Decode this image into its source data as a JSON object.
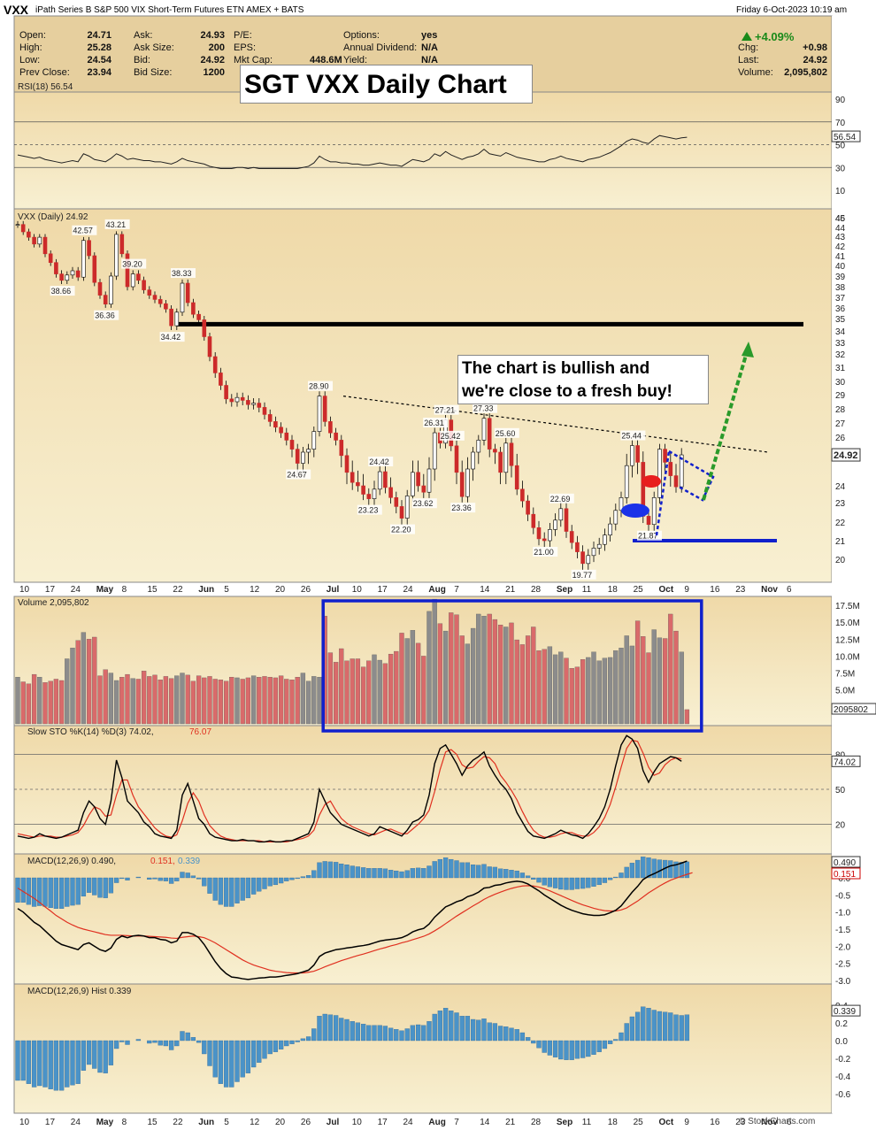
{
  "header": {
    "symbol": "VXX",
    "description": "iPath Series B S&P 500 VIX Short-Term Futures ETN AMEX + BATS",
    "timestamp": "Friday  6-Oct-2023 10:19 am",
    "pct_change": "+4.09%",
    "quote": [
      {
        "label": "Open:",
        "value": "24.71"
      },
      {
        "label": "High:",
        "value": "25.28"
      },
      {
        "label": "Low:",
        "value": "24.54"
      },
      {
        "label": "Prev Close:",
        "value": "23.94"
      },
      {
        "label": "Ask:",
        "value": "24.93"
      },
      {
        "label": "Ask Size:",
        "value": "200"
      },
      {
        "label": "Bid:",
        "value": "24.92"
      },
      {
        "label": "Bid Size:",
        "value": "1200"
      },
      {
        "label": "P/E:",
        "value": ""
      },
      {
        "label": "EPS:",
        "value": ""
      },
      {
        "label": "Mkt Cap:",
        "value": "448.6M"
      },
      {
        "label": "Options:",
        "value": "yes"
      },
      {
        "label": "Annual Dividend:",
        "value": "N/A"
      },
      {
        "label": "Yield:",
        "value": "N/A"
      },
      {
        "label": "Chg:",
        "value": "+0.98"
      },
      {
        "label": "Last:",
        "value": "24.92"
      },
      {
        "label": "Volume:",
        "value": "2,095,802"
      }
    ]
  },
  "annotations": {
    "main_title": "SGT VXX Daily Chart",
    "bull_note_line1": "The chart is bullish and",
    "bull_note_line2": "we're close to a fresh buy!"
  },
  "footer": {
    "source": "© StockCharts.com"
  },
  "colors": {
    "panel_bg": "#f6ecc8",
    "up": "#ffffff",
    "down": "#cc2a2a",
    "vol_up": "#8c8c8c",
    "vol_down": "#d96a6a",
    "macd_hist": "#4a93c8",
    "signal": "#e03020",
    "box": "#1020cc",
    "arrow": "#2a9a2a"
  },
  "chart_data": {
    "type": "candlestick",
    "x_labels": [
      "10",
      "17",
      "24",
      "May",
      "8",
      "15",
      "22",
      "Jun",
      "5",
      "12",
      "20",
      "26",
      "Jul",
      "10",
      "17",
      "24",
      "Aug",
      "7",
      "14",
      "21",
      "28",
      "Sep",
      "11",
      "18",
      "25",
      "Oct",
      "9",
      "16",
      "23",
      "Nov",
      "6"
    ],
    "price": {
      "legend": "VXX (Daily) 24.92",
      "y_ticks": [
        20,
        21,
        22,
        23,
        24,
        25,
        26,
        27,
        28,
        29,
        30,
        31,
        32,
        33,
        34,
        35,
        36,
        37,
        38,
        39,
        40,
        41,
        42,
        43,
        44,
        45,
        46
      ],
      "last": "24.92",
      "closes": [
        44.3,
        43.5,
        42.9,
        42.2,
        42.9,
        41.2,
        40.3,
        39.2,
        38.6,
        39.1,
        39.5,
        38.9,
        42.57,
        41.0,
        38.4,
        37.2,
        36.36,
        39.0,
        43.21,
        41.2,
        38.0,
        39.2,
        38.6,
        37.7,
        37.2,
        36.8,
        36.4,
        35.9,
        34.42,
        35.6,
        38.33,
        36.5,
        35.4,
        34.9,
        33.5,
        31.8,
        30.6,
        29.7,
        28.7,
        28.5,
        28.8,
        28.6,
        28.3,
        28.4,
        28.1,
        27.6,
        27.1,
        26.7,
        26.3,
        25.8,
        25.2,
        24.67,
        25.0,
        25.2,
        26.4,
        28.9,
        27.1,
        26.3,
        25.8,
        24.9,
        24.4,
        24.1,
        24.0,
        23.5,
        23.23,
        23.8,
        24.42,
        23.9,
        23.3,
        22.8,
        22.2,
        23.4,
        24.4,
        24.0,
        23.62,
        24.5,
        26.31,
        25.6,
        27.21,
        25.42,
        24.4,
        23.36,
        24.5,
        25.0,
        25.8,
        27.33,
        25.2,
        25.0,
        24.4,
        25.6,
        24.6,
        23.8,
        23.1,
        22.4,
        21.7,
        21.1,
        21.0,
        21.6,
        22.1,
        22.69,
        21.5,
        20.9,
        20.4,
        19.77,
        20.2,
        20.6,
        20.8,
        21.3,
        21.9,
        22.6,
        23.3,
        24.6,
        25.44,
        24.7,
        22.3,
        21.87,
        23.3,
        25.2,
        24.7,
        24.3,
        23.94,
        24.92
      ],
      "price_labels": [
        {
          "value": "42.57"
        },
        {
          "value": "43.21"
        },
        {
          "value": "38.66"
        },
        {
          "value": "36.36"
        },
        {
          "value": "39.20"
        },
        {
          "value": "38.33"
        },
        {
          "value": "34.42"
        },
        {
          "value": "28.90"
        },
        {
          "value": "24.67"
        },
        {
          "value": "24.42"
        },
        {
          "value": "23.23"
        },
        {
          "value": "22.20"
        },
        {
          "value": "26.31"
        },
        {
          "value": "27.21"
        },
        {
          "value": "25.42"
        },
        {
          "value": "23.62"
        },
        {
          "value": "23.36"
        },
        {
          "value": "27.33"
        },
        {
          "value": "25.60"
        },
        {
          "value": "22.69"
        },
        {
          "value": "21.00"
        },
        {
          "value": "19.77"
        },
        {
          "value": "25.44"
        },
        {
          "value": "21.87"
        }
      ],
      "support_level": 34.4,
      "lower_support_level": 21.0
    },
    "rsi": {
      "legend": "RSI(18) 56.54",
      "y_ticks": [
        10,
        30,
        50,
        70,
        90
      ],
      "value_label": "56.54",
      "values": [
        41,
        40,
        39,
        38,
        39,
        37,
        36,
        35,
        34,
        35,
        36,
        35,
        42,
        40,
        37,
        36,
        35,
        38,
        42,
        40,
        37,
        38,
        37,
        36,
        36,
        35,
        35,
        34,
        33,
        35,
        38,
        36,
        35,
        34,
        33,
        31,
        30,
        29,
        29,
        29,
        30,
        30,
        29,
        30,
        29,
        29,
        29,
        29,
        29,
        29,
        29,
        29,
        30,
        31,
        34,
        40,
        37,
        35,
        35,
        34,
        34,
        33,
        33,
        32,
        32,
        33,
        34,
        33,
        32,
        32,
        31,
        34,
        37,
        36,
        35,
        37,
        42,
        40,
        44,
        41,
        39,
        37,
        39,
        40,
        42,
        46,
        42,
        41,
        40,
        43,
        41,
        39,
        38,
        37,
        36,
        35,
        35,
        37,
        38,
        40,
        38,
        37,
        36,
        35,
        37,
        38,
        39,
        41,
        43,
        46,
        49,
        53,
        55,
        54,
        52,
        51,
        55,
        58,
        57,
        56,
        55,
        56,
        56.54
      ]
    },
    "volume": {
      "legend": "Volume 2,095,802",
      "y_ticks": [
        "5.0M",
        "7.5M",
        "10.0M",
        "12.5M",
        "15.0M",
        "17.5M"
      ],
      "value_label": "2095802",
      "values": [
        6.9,
        6.2,
        5.9,
        7.3,
        6.9,
        6.1,
        6.3,
        6.6,
        6.4,
        9.6,
        11.2,
        12.3,
        13.5,
        12.5,
        12.8,
        7.1,
        8.0,
        7.5,
        6.4,
        6.9,
        7.3,
        6.7,
        6.6,
        7.8,
        7.0,
        7.2,
        6.5,
        7.0,
        6.7,
        7.1,
        7.5,
        7.2,
        6.3,
        7.1,
        6.8,
        7.0,
        6.6,
        6.5,
        6.3,
        6.9,
        6.8,
        6.6,
        6.8,
        7.1,
        6.9,
        7.0,
        6.9,
        6.8,
        7.1,
        6.6,
        6.5,
        6.9,
        7.5,
        6.3,
        7.0,
        6.9,
        15.9,
        10.5,
        9.1,
        11.1,
        9.3,
        9.6,
        9.6,
        8.4,
        9.3,
        10.2,
        9.4,
        8.9,
        10.3,
        10.7,
        13.4,
        12.6,
        13.8,
        11.9,
        10.0,
        16.6,
        18.4,
        14.8,
        13.7,
        16.4,
        16.1,
        13.0,
        11.8,
        14.1,
        16.2,
        15.9,
        16.2,
        15.4,
        14.6,
        14.3,
        14.9,
        12.4,
        11.7,
        13.0,
        14.3,
        10.8,
        11.0,
        11.4,
        10.2,
        10.6,
        9.7,
        8.2,
        8.4,
        9.5,
        9.8,
        10.6,
        9.3,
        9.7,
        9.8,
        10.8,
        11.2,
        13.0,
        11.5,
        15.2,
        12.9,
        10.5,
        13.9,
        12.7,
        12.6,
        16.2,
        13.7,
        10.6,
        2.1
      ],
      "box": {
        "from": 56,
        "to": 124
      }
    },
    "stochastic": {
      "legend_main": "Slow STO %K(14) %D(3) 74.02,",
      "legend_d": "76.07",
      "y_ticks": [
        20,
        50,
        80
      ],
      "value_label": "74.02",
      "k": [
        10,
        9,
        8,
        9,
        12,
        10,
        9,
        8,
        9,
        11,
        13,
        15,
        30,
        40,
        35,
        25,
        20,
        40,
        75,
        60,
        40,
        35,
        30,
        22,
        18,
        12,
        10,
        9,
        8,
        15,
        45,
        55,
        40,
        25,
        20,
        12,
        9,
        8,
        7,
        6,
        6,
        7,
        6,
        6,
        5,
        5,
        6,
        5,
        5,
        6,
        6,
        8,
        10,
        12,
        22,
        50,
        40,
        30,
        25,
        20,
        18,
        16,
        14,
        12,
        10,
        12,
        18,
        16,
        14,
        12,
        10,
        15,
        22,
        24,
        28,
        45,
        72,
        85,
        88,
        80,
        72,
        62,
        70,
        75,
        78,
        82,
        70,
        62,
        55,
        50,
        42,
        30,
        22,
        14,
        10,
        9,
        8,
        10,
        12,
        15,
        13,
        11,
        10,
        8,
        12,
        18,
        25,
        35,
        50,
        70,
        88,
        96,
        93,
        85,
        66,
        56,
        65,
        72,
        75,
        78,
        77,
        74.02
      ],
      "d": [
        12,
        11,
        10,
        9,
        10,
        10,
        10,
        9,
        9,
        10,
        11,
        13,
        19,
        28,
        35,
        33,
        27,
        28,
        45,
        58,
        58,
        45,
        35,
        29,
        23,
        17,
        13,
        10,
        9,
        11,
        23,
        38,
        47,
        40,
        28,
        19,
        14,
        10,
        8,
        7,
        6,
        6,
        6,
        6,
        6,
        5,
        5,
        5,
        5,
        5,
        6,
        7,
        8,
        10,
        15,
        28,
        37,
        40,
        32,
        25,
        21,
        18,
        16,
        14,
        12,
        11,
        13,
        15,
        16,
        14,
        12,
        12,
        16,
        20,
        25,
        32,
        48,
        67,
        82,
        84,
        80,
        71,
        68,
        69,
        74,
        78,
        77,
        72,
        62,
        56,
        49,
        41,
        31,
        22,
        15,
        11,
        9,
        9,
        10,
        12,
        13,
        13,
        11,
        10,
        10,
        13,
        18,
        26,
        37,
        52,
        69,
        85,
        92,
        91,
        81,
        69,
        62,
        64,
        71,
        75,
        77,
        76.07
      ]
    },
    "macd": {
      "legend_main": "MACD(12,26,9) 0.490,",
      "legend_signal": "0.151,",
      "legend_hist": "0.339",
      "value_macd": "0.490",
      "value_signal": "0.151",
      "y_ticks": [
        "0.5",
        "-0.0",
        "-0.5",
        "-1.0",
        "-1.5",
        "-2.0",
        "-2.5",
        "-3.0"
      ],
      "macd": [
        -0.9,
        -1.0,
        -1.15,
        -1.3,
        -1.4,
        -1.55,
        -1.7,
        -1.85,
        -1.95,
        -2.0,
        -2.05,
        -2.1,
        -1.95,
        -1.9,
        -2.0,
        -2.1,
        -2.15,
        -2.05,
        -1.8,
        -1.7,
        -1.75,
        -1.7,
        -1.68,
        -1.7,
        -1.75,
        -1.75,
        -1.8,
        -1.82,
        -1.9,
        -1.85,
        -1.6,
        -1.6,
        -1.65,
        -1.75,
        -1.95,
        -2.2,
        -2.45,
        -2.65,
        -2.8,
        -2.9,
        -2.92,
        -2.95,
        -2.97,
        -2.95,
        -2.93,
        -2.92,
        -2.9,
        -2.9,
        -2.88,
        -2.85,
        -2.83,
        -2.8,
        -2.75,
        -2.7,
        -2.55,
        -2.3,
        -2.2,
        -2.15,
        -2.1,
        -2.08,
        -2.05,
        -2.03,
        -2.0,
        -1.98,
        -1.95,
        -1.9,
        -1.85,
        -1.82,
        -1.8,
        -1.78,
        -1.75,
        -1.68,
        -1.58,
        -1.52,
        -1.48,
        -1.35,
        -1.15,
        -1.0,
        -0.85,
        -0.78,
        -0.7,
        -0.65,
        -0.55,
        -0.5,
        -0.42,
        -0.3,
        -0.28,
        -0.22,
        -0.2,
        -0.15,
        -0.12,
        -0.1,
        -0.12,
        -0.18,
        -0.28,
        -0.38,
        -0.5,
        -0.6,
        -0.7,
        -0.8,
        -0.88,
        -0.95,
        -1.0,
        -1.05,
        -1.08,
        -1.1,
        -1.1,
        -1.08,
        -1.02,
        -0.95,
        -0.82,
        -0.62,
        -0.42,
        -0.25,
        -0.05,
        0.05,
        0.12,
        0.2,
        0.28,
        0.35,
        0.38,
        0.43,
        0.49
      ],
      "signal": [
        -0.3,
        -0.4,
        -0.5,
        -0.6,
        -0.72,
        -0.85,
        -0.97,
        -1.1,
        -1.2,
        -1.3,
        -1.38,
        -1.45,
        -1.5,
        -1.54,
        -1.58,
        -1.62,
        -1.66,
        -1.68,
        -1.68,
        -1.68,
        -1.69,
        -1.7,
        -1.7,
        -1.7,
        -1.71,
        -1.72,
        -1.73,
        -1.74,
        -1.76,
        -1.77,
        -1.74,
        -1.72,
        -1.7,
        -1.72,
        -1.75,
        -1.82,
        -1.9,
        -2.0,
        -2.1,
        -2.2,
        -2.3,
        -2.4,
        -2.48,
        -2.55,
        -2.6,
        -2.65,
        -2.7,
        -2.73,
        -2.75,
        -2.77,
        -2.78,
        -2.78,
        -2.78,
        -2.76,
        -2.73,
        -2.67,
        -2.6,
        -2.54,
        -2.48,
        -2.42,
        -2.37,
        -2.32,
        -2.27,
        -2.23,
        -2.18,
        -2.13,
        -2.08,
        -2.04,
        -1.99,
        -1.95,
        -1.9,
        -1.86,
        -1.81,
        -1.76,
        -1.71,
        -1.64,
        -1.55,
        -1.45,
        -1.34,
        -1.23,
        -1.12,
        -1.02,
        -0.92,
        -0.82,
        -0.73,
        -0.63,
        -0.55,
        -0.48,
        -0.42,
        -0.36,
        -0.31,
        -0.27,
        -0.24,
        -0.23,
        -0.24,
        -0.27,
        -0.32,
        -0.38,
        -0.45,
        -0.52,
        -0.59,
        -0.66,
        -0.73,
        -0.79,
        -0.84,
        -0.89,
        -0.93,
        -0.96,
        -0.97,
        -0.97,
        -0.94,
        -0.88,
        -0.78,
        -0.68,
        -0.56,
        -0.44,
        -0.34,
        -0.24,
        -0.15,
        -0.07,
        -0.01,
        0.05,
        0.1,
        0.151
      ]
    },
    "macd_hist": {
      "legend": "MACD(12,26,9) Hist 0.339",
      "value_label": "0.339",
      "y_ticks": [
        "0.4",
        "0.2",
        "0.0",
        "-0.2",
        "-0.4",
        "-0.6"
      ]
    }
  }
}
